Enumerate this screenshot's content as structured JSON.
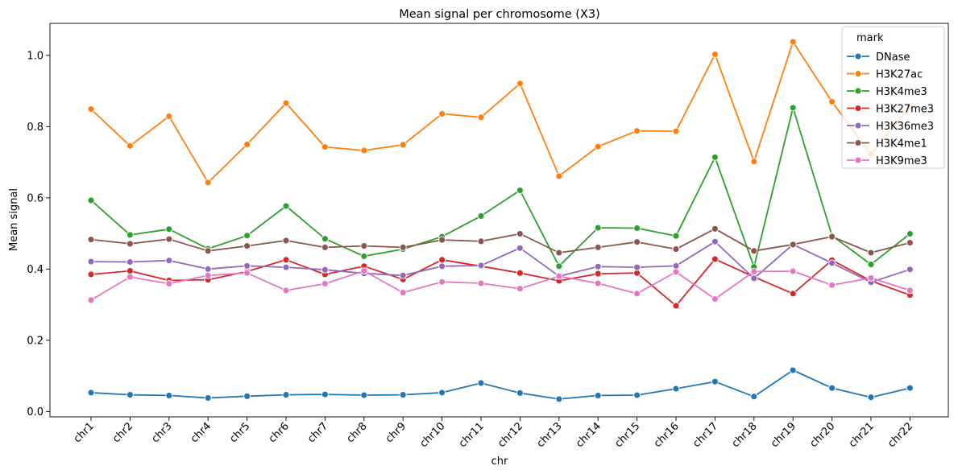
{
  "chart_data": {
    "type": "line",
    "title": "Mean signal per chromosome (X3)",
    "xlabel": "chr",
    "ylabel": "Mean signal",
    "ylim": [
      -0.015,
      1.09
    ],
    "yticks": [
      "0.0",
      "0.2",
      "0.4",
      "0.6",
      "0.8",
      "1.0"
    ],
    "ytick_values": [
      0.0,
      0.2,
      0.4,
      0.6,
      0.8,
      1.0
    ],
    "grid": false,
    "legend": {
      "title": "mark",
      "placement": "top-right"
    },
    "categories": [
      "chr1",
      "chr2",
      "chr3",
      "chr4",
      "chr5",
      "chr6",
      "chr7",
      "chr8",
      "chr9",
      "chr10",
      "chr11",
      "chr12",
      "chr13",
      "chr14",
      "chr15",
      "chr16",
      "chr17",
      "chr18",
      "chr19",
      "chr20",
      "chr21",
      "chr22"
    ],
    "series": [
      {
        "name": "DNase",
        "color": "#1f77b4",
        "values": [
          0.053,
          0.047,
          0.045,
          0.038,
          0.043,
          0.047,
          0.048,
          0.046,
          0.047,
          0.053,
          0.08,
          0.052,
          0.035,
          0.045,
          0.046,
          0.064,
          0.084,
          0.042,
          0.116,
          0.066,
          0.04,
          0.066
        ]
      },
      {
        "name": "H3K27ac",
        "color": "#ff7f0e",
        "values": [
          0.849,
          0.746,
          0.829,
          0.643,
          0.75,
          0.866,
          0.743,
          0.733,
          0.749,
          0.836,
          0.826,
          0.921,
          0.661,
          0.744,
          0.788,
          0.787,
          1.003,
          0.702,
          1.038,
          0.87,
          0.722,
          0.855
        ]
      },
      {
        "name": "H3K4me3",
        "color": "#2ca02c",
        "values": [
          0.593,
          0.496,
          0.512,
          0.457,
          0.494,
          0.577,
          0.485,
          0.436,
          0.456,
          0.491,
          0.549,
          0.621,
          0.408,
          0.516,
          0.515,
          0.493,
          0.714,
          0.406,
          0.853,
          0.494,
          0.413,
          0.499
        ]
      },
      {
        "name": "H3K27me3",
        "color": "#d62728",
        "values": [
          0.385,
          0.395,
          0.368,
          0.37,
          0.393,
          0.426,
          0.385,
          0.408,
          0.371,
          0.426,
          0.408,
          0.389,
          0.367,
          0.387,
          0.389,
          0.297,
          0.428,
          0.378,
          0.331,
          0.425,
          0.367,
          0.327
        ]
      },
      {
        "name": "H3K36me3",
        "color": "#9467bd",
        "values": [
          0.421,
          0.42,
          0.424,
          0.4,
          0.409,
          0.405,
          0.398,
          0.388,
          0.382,
          0.408,
          0.41,
          0.459,
          0.38,
          0.407,
          0.405,
          0.409,
          0.477,
          0.374,
          0.469,
          0.417,
          0.363,
          0.399
        ]
      },
      {
        "name": "H3K4me1",
        "color": "#8c564b",
        "values": [
          0.483,
          0.471,
          0.484,
          0.451,
          0.465,
          0.48,
          0.461,
          0.465,
          0.461,
          0.482,
          0.478,
          0.499,
          0.446,
          0.461,
          0.476,
          0.456,
          0.513,
          0.451,
          0.469,
          0.491,
          0.446,
          0.474
        ]
      },
      {
        "name": "H3K9me3",
        "color": "#e377c2",
        "values": [
          0.313,
          0.378,
          0.359,
          0.382,
          0.389,
          0.34,
          0.359,
          0.395,
          0.334,
          0.364,
          0.36,
          0.345,
          0.38,
          0.36,
          0.331,
          0.392,
          0.316,
          0.393,
          0.394,
          0.355,
          0.375,
          0.34
        ]
      }
    ]
  }
}
